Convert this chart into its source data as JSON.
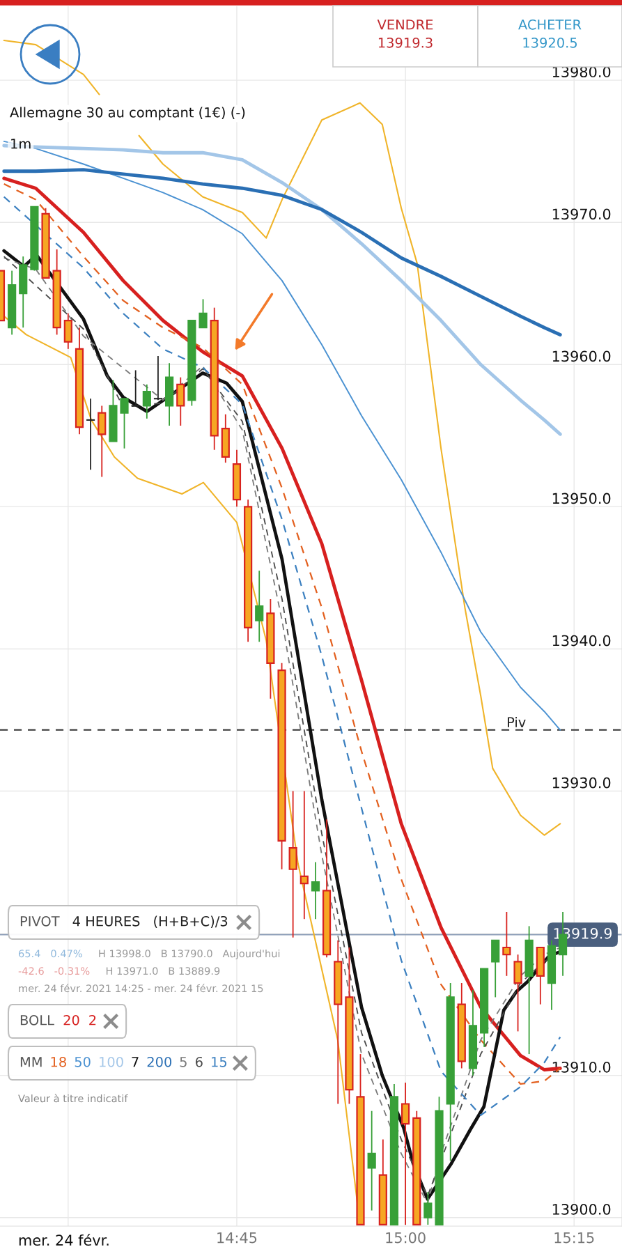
{
  "chart_data": {
    "type": "candlestick",
    "title": "Allemagne 30 au comptant (1€) (-)",
    "subtitle": "1m",
    "annotations": [
      "mer. 24 févr.",
      "VENDRE",
      "13919.3",
      "ACHETER",
      "13920.5",
      "PIVOT",
      "4 HEURES",
      "(H+B+C)/3",
      "BOLL",
      "2",
      "MM",
      "65.4   0.47%",
      "H 13998.0   B 13790.0   Aujourd'hui",
      "-42.6   -0.31%",
      "H 13971.0   B 13889.9",
      "mer. 24 févr. 2021 14:25 - mer. 24 févr. 2021 15",
      "Valeur à titre indicatif"
    ],
    "x": [
      14.4,
      14.4167,
      14.4333,
      14.45,
      14.4667,
      14.4833,
      14.5,
      14.5167,
      14.5333,
      14.55,
      14.5667,
      14.5833,
      14.6,
      14.6167,
      14.6333,
      14.65,
      14.6667,
      14.6833,
      14.7,
      14.7167,
      14.7333,
      14.75,
      14.7667,
      14.7833,
      14.8,
      14.8167,
      14.8333,
      14.85,
      14.8667,
      14.8833,
      14.9,
      14.9167,
      14.9333,
      14.95,
      14.9667,
      14.9833,
      15.0,
      15.0167,
      15.0333,
      15.05,
      15.0667,
      15.0833,
      15.1,
      15.1167,
      15.1333,
      15.15,
      15.1667,
      15.1833,
      15.2,
      15.2167,
      15.2333
    ],
    "ohlc": [
      [
        13966.6,
        13966.6,
        13963.1,
        13963.1
      ],
      [
        13962.6,
        13966.6,
        13962.1,
        13965.6
      ],
      [
        13965.0,
        13967.6,
        13962.6,
        13967.0
      ],
      [
        13966.7,
        13971.1,
        13966.6,
        13971.1
      ],
      [
        13970.6,
        13971.0,
        13966.1,
        13966.1
      ],
      [
        13966.6,
        13968.1,
        13962.1,
        13962.6
      ],
      [
        13963.1,
        13963.6,
        13961.1,
        13961.6
      ],
      [
        13961.1,
        13962.6,
        13955.1,
        13955.6
      ],
      [
        13956.1,
        13957.6,
        13952.6,
        13956.1
      ],
      [
        13956.6,
        13957.1,
        13952.1,
        13955.1
      ],
      [
        13954.6,
        13958.9,
        13954.6,
        13957.1
      ],
      [
        13956.6,
        13957.6,
        13954.1,
        13957.6
      ],
      [
        13957.1,
        13959.6,
        13957.1,
        13957.1
      ],
      [
        13957.1,
        13958.6,
        13956.2,
        13958.1
      ],
      [
        13957.6,
        13960.6,
        13957.5,
        13957.6
      ],
      [
        13957.1,
        13960.1,
        13955.7,
        13959.1
      ],
      [
        13958.6,
        13959.1,
        13955.7,
        13957.1
      ],
      [
        13957.5,
        13963.1,
        13957.1,
        13963.1
      ],
      [
        13962.6,
        13964.6,
        13962.6,
        13963.6
      ],
      [
        13963.1,
        13964.0,
        13954.0,
        13955.0
      ],
      [
        13955.5,
        13956.5,
        13953.1,
        13953.5
      ],
      [
        13953.0,
        13954.0,
        13950.0,
        13950.5
      ],
      [
        13950.0,
        13950.5,
        13940.5,
        13941.5
      ],
      [
        13942.0,
        13945.5,
        13940.5,
        13943.0
      ],
      [
        13942.5,
        13943.5,
        13936.5,
        13939.0
      ],
      [
        13938.5,
        13939.0,
        13924.5,
        13926.5
      ],
      [
        13926.0,
        13930.0,
        13919.7,
        13924.5
      ],
      [
        13924.0,
        13930.0,
        13921.0,
        13923.5
      ],
      [
        13923.0,
        13925.0,
        13921.0,
        13923.6
      ],
      [
        13923.0,
        13928.0,
        13918.3,
        13918.5
      ],
      [
        13918.0,
        13919.5,
        13908.0,
        13915.0
      ],
      [
        13915.5,
        13919.0,
        13908.0,
        13909.0
      ],
      [
        13908.5,
        13911.5,
        13899.5,
        13899.5
      ],
      [
        13903.5,
        13907.5,
        13900.5,
        13904.5
      ],
      [
        13903.0,
        13905.5,
        13899.5,
        13899.5
      ],
      [
        13899.5,
        13909.4,
        13899.5,
        13908.5
      ],
      [
        13908.0,
        13909.5,
        13899.5,
        13906.6
      ],
      [
        13907.0,
        13907.5,
        13899.5,
        13899.5
      ],
      [
        13900.0,
        13901.8,
        13899.5,
        13901.0
      ],
      [
        13899.5,
        13908.5,
        13899.5,
        13907.5
      ],
      [
        13908.0,
        13916.5,
        13904.0,
        13915.5
      ],
      [
        13915.0,
        13916.5,
        13910.5,
        13911.0
      ],
      [
        13910.5,
        13916.0,
        13910.0,
        13913.5
      ],
      [
        13913.0,
        13917.5,
        13912.0,
        13917.5
      ],
      [
        13918.0,
        13919.5,
        13915.5,
        13919.5
      ],
      [
        13919.0,
        13921.5,
        13917.0,
        13918.5
      ],
      [
        13918.0,
        13918.5,
        13913.1,
        13916.5
      ],
      [
        13917.0,
        13920.5,
        13911.5,
        13919.5
      ],
      [
        13919.0,
        13919.0,
        13915.0,
        13917.0
      ],
      [
        13916.5,
        13919.5,
        13914.6,
        13919.1
      ],
      [
        13918.5,
        13921.5,
        13917.0,
        13919.9
      ]
    ],
    "series": [
      {
        "name": "20",
        "type": "line",
        "color": "#d7201f",
        "line_style": "solid",
        "x": [
          14.4049,
          14.452,
          14.5227,
          14.5816,
          14.6405,
          14.6994,
          14.7582,
          14.8171,
          14.876,
          14.9349,
          14.9938,
          15.0527,
          15.1116,
          15.1705,
          15.2058,
          15.2294
        ],
        "values": [
          13973.1,
          13972.4,
          13969.3,
          13965.9,
          13963.1,
          13960.9,
          13959.2,
          13954.1,
          13947.4,
          13937.8,
          13927.7,
          13920.4,
          13914.8,
          13911.4,
          13910.4,
          13910.5
        ]
      },
      {
        "type": "line",
        "color": "#f0b429",
        "line_style": "solid",
        "x": [
          14.4049,
          14.452,
          14.5227,
          14.5462,
          14.5816,
          14.6051,
          14.6405,
          14.6994,
          14.7582,
          14.7936,
          14.8171,
          14.876,
          14.9326,
          14.9656,
          14.9938,
          15.0174,
          15.0527,
          15.0881,
          15.1116,
          15.1293,
          15.1705,
          15.2058,
          15.2294
        ],
        "values": [
          13982.8,
          13982.5,
          13980.4,
          13979.0,
          null,
          13976.1,
          13974.1,
          13971.8,
          13970.7,
          13968.9,
          13971.6,
          13977.2,
          13978.4,
          13976.9,
          13971.0,
          13967.1,
          13954.1,
          13942.9,
          13936.7,
          13931.6,
          13928.3,
          13926.9,
          13927.7
        ]
      },
      {
        "type": "line",
        "color": "#f0b429",
        "line_style": "solid",
        "x": [
          14.4049,
          14.4379,
          14.5038,
          14.5344,
          14.5686,
          14.6028,
          14.6687,
          14.7005,
          14.75,
          14.7936,
          14.8407,
          14.8996,
          14.9326
        ],
        "values": [
          13963.4,
          13962.1,
          13960.5,
          13956.1,
          13953.5,
          13952.0,
          13950.9,
          13951.7,
          13948.9,
          13940.6,
          13924.9,
          13912.5,
          13899.5
        ]
      },
      {
        "name": "18",
        "type": "line",
        "color": "#e3601f",
        "line_style": "dashed",
        "x": [
          14.4049,
          14.452,
          14.5227,
          14.5816,
          14.6405,
          14.6994,
          14.7582,
          14.8171,
          14.876,
          14.9349,
          14.9938,
          15.0527,
          15.1116,
          15.1705,
          15.2058,
          15.2294
        ],
        "values": [
          13972.7,
          13971.6,
          13967.6,
          13964.5,
          13962.6,
          13961.2,
          13958.6,
          13951.3,
          13942.9,
          13932.8,
          13923.8,
          13916.4,
          13912.5,
          13909.4,
          13909.6,
          13910.5
        ]
      },
      {
        "name": "50",
        "type": "line",
        "color": "#4b92d2",
        "line_style": "solid",
        "x": [
          14.4049,
          14.452,
          14.5227,
          14.5816,
          14.6405,
          14.6994,
          14.7582,
          14.8171,
          14.876,
          14.9349,
          14.9938,
          15.0527,
          15.1116,
          15.1705,
          15.2058,
          15.2294
        ],
        "values": [
          13975.7,
          13975.2,
          13974.1,
          13973.1,
          13972.1,
          13970.9,
          13969.2,
          13965.9,
          13961.4,
          13956.4,
          13951.9,
          13946.8,
          13941.2,
          13937.3,
          13935.6,
          13934.3
        ]
      },
      {
        "name": "100",
        "type": "line",
        "color": "#a3c6e8",
        "line_style": "solid",
        "x": [
          14.4049,
          14.452,
          14.5227,
          14.5816,
          14.6405,
          14.6994,
          14.7582,
          14.8171,
          14.876,
          14.9349,
          14.9938,
          15.0527,
          15.1116,
          15.1705,
          15.2058,
          15.2294
        ],
        "values": [
          13975.4,
          13975.3,
          13975.2,
          13975.1,
          13974.9,
          13974.9,
          13974.4,
          13972.8,
          13970.9,
          13968.5,
          13965.9,
          13963.1,
          13960.0,
          13957.5,
          13956.1,
          13955.1
        ]
      },
      {
        "name": "7",
        "type": "line",
        "color": "#111111",
        "line_style": "solid",
        "x": [
          14.4049,
          14.4343,
          14.4532,
          14.5227,
          14.558,
          14.5816,
          14.6169,
          14.6994,
          14.7347,
          14.7582,
          14.8171,
          14.876,
          14.9349,
          14.9656,
          14.9974,
          15.0115,
          15.0327,
          15.068,
          15.0963,
          15.1163,
          15.1458,
          15.1646,
          15.1811,
          15.2129,
          15.2294
        ],
        "values": [
          13968.0,
          13966.9,
          13967.7,
          13963.2,
          13959.2,
          13957.7,
          13956.7,
          13959.4,
          13958.7,
          13957.4,
          13946.3,
          13929.4,
          13914.8,
          13910.0,
          13906.3,
          13903.8,
          13901.3,
          13903.8,
          13906.2,
          13907.8,
          13914.6,
          13915.9,
          13916.6,
          13918.4,
          13918.7
        ]
      },
      {
        "name": "200",
        "type": "line",
        "color": "#2a6fb4",
        "line_style": "solid",
        "x": [
          14.4049,
          14.452,
          14.5227,
          14.5816,
          14.6405,
          14.6994,
          14.7582,
          14.8171,
          14.876,
          14.9349,
          14.9938,
          15.0527,
          15.1116,
          15.1705,
          15.2058,
          15.2294
        ],
        "values": [
          13973.6,
          13973.6,
          13973.7,
          13973.4,
          13973.1,
          13972.7,
          13972.4,
          13971.9,
          13970.9,
          13969.3,
          13967.5,
          13966.2,
          13964.8,
          13963.4,
          13962.6,
          13962.1
        ]
      },
      {
        "name": "5",
        "type": "line",
        "color": "#7a7a7a",
        "line_style": "dashed",
        "x": [
          14.4049,
          14.452,
          14.5227,
          14.6405,
          14.6994,
          14.7582,
          14.8171,
          14.876,
          14.9349,
          14.9938,
          15.0327,
          15.0527,
          15.1116,
          15.1705,
          15.2058,
          15.2294
        ],
        "values": [
          13967.5,
          13966.7,
          13962.0,
          13957.5,
          13959.9,
          13955.4,
          13942.0,
          13925.5,
          13911.5,
          13904.5,
          13901.0,
          13904.5,
          13912.5,
          13917.0,
          13918.5,
          13919.0
        ]
      },
      {
        "name": "6",
        "type": "line",
        "color": "#4a4a4a",
        "line_style": "dashed",
        "x": [
          14.4049,
          14.5227,
          14.5816,
          14.6405,
          14.6994,
          14.7582,
          14.8171,
          14.876,
          14.9349,
          14.9938,
          15.0327,
          15.1116,
          15.1705,
          15.2058,
          15.2294
        ],
        "values": [
          13967.6,
          13962.5,
          13957.0,
          13957.3,
          13959.7,
          13956.0,
          13943.5,
          13927.0,
          13913.0,
          13905.5,
          13901.5,
          13911.5,
          13916.5,
          13918.0,
          13918.8
        ]
      },
      {
        "name": "15",
        "type": "line",
        "color": "#3c80c0",
        "line_style": "dashed",
        "x": [
          14.4049,
          14.5227,
          14.5816,
          14.6405,
          14.6994,
          14.7582,
          14.8171,
          14.876,
          14.9349,
          14.9938,
          15.0527,
          15.1116,
          15.1705,
          15.2058,
          15.2294
        ],
        "values": [
          13971.8,
          13966.8,
          13963.6,
          13961.1,
          13959.8,
          13957.2,
          13949.1,
          13939.5,
          13928.8,
          13918.1,
          13910.3,
          13907.2,
          13909.2,
          13910.9,
          13912.7
        ]
      }
    ],
    "xlim": [
      14.399,
      15.321
    ],
    "xticks": [
      {
        "value": 14.5,
        "label": null
      },
      {
        "value": 14.75,
        "label": "14:45"
      },
      {
        "value": 15.0,
        "label": "15:00"
      },
      {
        "value": 15.25,
        "label": "15:15"
      }
    ],
    "ylim": [
      13899.4,
      13985.2
    ],
    "yticks": [
      {
        "value": 13900,
        "label": "13900.0"
      },
      {
        "value": 13910,
        "label": "13910.0"
      },
      {
        "value": 13920,
        "label": null
      },
      {
        "value": 13930,
        "label": "13930.0"
      },
      {
        "value": 13940,
        "label": "13940.0"
      },
      {
        "value": 13950,
        "label": "13950.0"
      },
      {
        "value": 13960,
        "label": "13960.0"
      },
      {
        "value": 13970,
        "label": "13970.0"
      },
      {
        "value": 13980,
        "label": "13980.0"
      }
    ],
    "ref_lines": [
      {
        "axis": "y",
        "value": 13934.3,
        "label": "Piv",
        "color": "#333333",
        "line_style": "dashed"
      },
      {
        "axis": "y",
        "value": 13919.9,
        "label": "13919.9",
        "color": "#8a9bb5",
        "line_style": "solid"
      }
    ],
    "grid": true,
    "legend": "bottom left"
  }
}
